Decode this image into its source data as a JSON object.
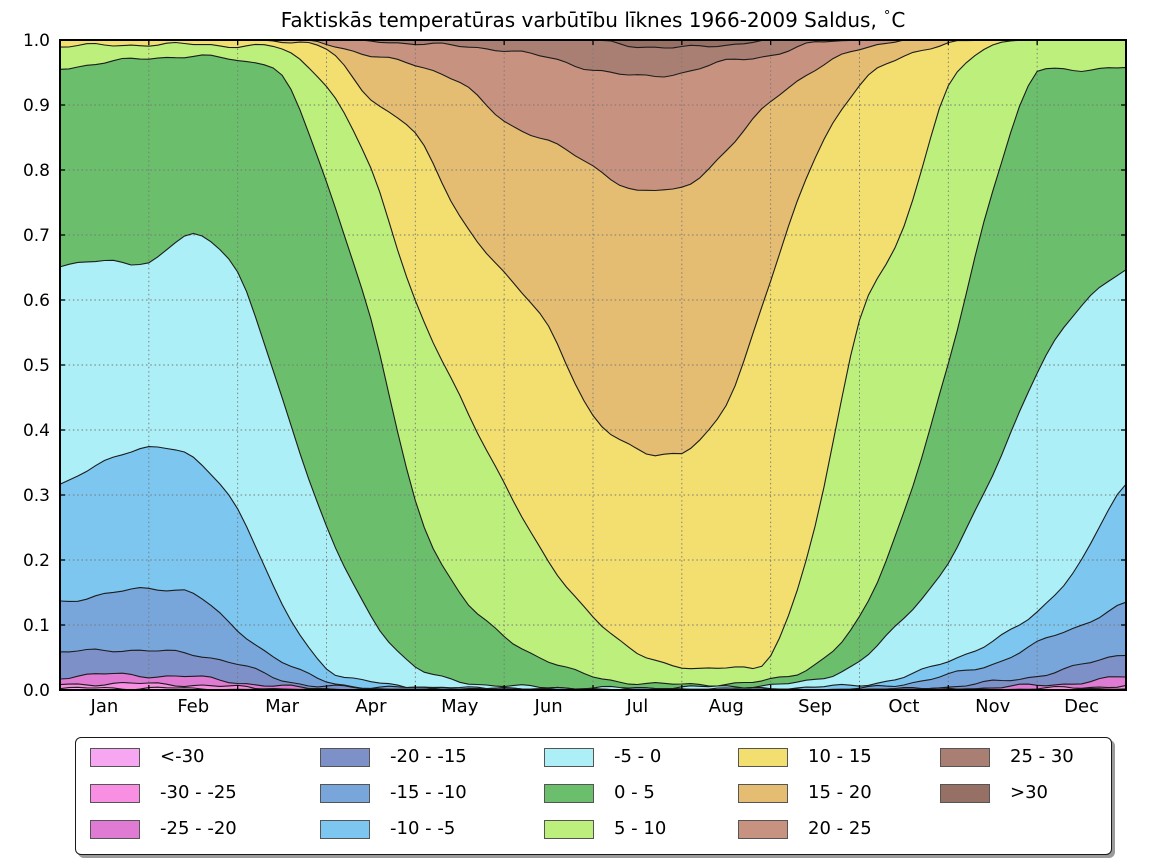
{
  "title": {
    "text": "Faktiskās temperatūras varbūtību līknes 1966-2009 Saldus,",
    "degree": "°",
    "unit": "C"
  },
  "chart_data": {
    "type": "area",
    "stacking": "cumulative-probability",
    "title": "Faktiskās temperatūras varbūtību līknes 1966-2009 Saldus, °C",
    "xlabel": "",
    "ylabel": "",
    "ylim": [
      0,
      1
    ],
    "grid": true,
    "legend_position": "bottom",
    "x_unit": "month-of-year",
    "x_knots_months": [
      0,
      0.5,
      1,
      1.5,
      2,
      2.5,
      3,
      3.5,
      4,
      4.5,
      5,
      5.5,
      6,
      6.5,
      7,
      7.5,
      8,
      8.5,
      9,
      9.5,
      10,
      10.5,
      11,
      11.5,
      12
    ],
    "x_tick_labels": [
      "Jan",
      "Feb",
      "Mar",
      "Apr",
      "May",
      "Jun",
      "Jul",
      "Aug",
      "Sep",
      "Oct",
      "Nov",
      "Dec"
    ],
    "y_tick_labels": [
      "0.0",
      "0.1",
      "0.2",
      "0.3",
      "0.4",
      "0.5",
      "0.6",
      "0.7",
      "0.8",
      "0.9",
      "1.0"
    ],
    "bands": [
      {
        "id": "lt-neg30",
        "label": "<-30",
        "color": "#F7A6F2",
        "cum_upper": [
          0.002,
          0.003,
          0.003,
          0.002,
          0.001,
          0.001,
          0,
          0,
          0,
          0,
          0,
          0,
          0,
          0,
          0,
          0,
          0,
          0,
          0,
          0,
          0,
          0,
          0.001,
          0.001,
          0.002
        ]
      },
      {
        "id": "neg30-neg25",
        "label": "-30 - -25",
        "color": "#F98FE2",
        "cum_upper": [
          0.008,
          0.01,
          0.009,
          0.008,
          0.004,
          0.002,
          0.001,
          0,
          0,
          0,
          0,
          0,
          0,
          0,
          0,
          0,
          0,
          0,
          0,
          0,
          0.001,
          0.001,
          0.002,
          0.004,
          0.007
        ]
      },
      {
        "id": "neg25-neg20",
        "label": "-25 - -20",
        "color": "#DF7BD2",
        "cum_upper": [
          0.02,
          0.024,
          0.022,
          0.02,
          0.012,
          0.005,
          0.002,
          0.001,
          0.001,
          0,
          0,
          0,
          0,
          0,
          0,
          0,
          0,
          0,
          0,
          0.001,
          0.002,
          0.004,
          0.007,
          0.012,
          0.02
        ]
      },
      {
        "id": "neg20-neg15",
        "label": "-20 - -15",
        "color": "#7E90C8",
        "cum_upper": [
          0.057,
          0.062,
          0.06,
          0.055,
          0.04,
          0.015,
          0.006,
          0.002,
          0.001,
          0.001,
          0.001,
          0.001,
          0,
          0,
          0,
          0,
          0,
          0,
          0.001,
          0.002,
          0.005,
          0.012,
          0.022,
          0.038,
          0.056
        ]
      },
      {
        "id": "neg15-neg10",
        "label": "-15 - -10",
        "color": "#78A6DB",
        "cum_upper": [
          0.135,
          0.148,
          0.155,
          0.15,
          0.09,
          0.045,
          0.012,
          0.005,
          0.003,
          0.002,
          0.002,
          0.001,
          0.001,
          0.001,
          0.001,
          0.001,
          0.001,
          0.001,
          0.002,
          0.01,
          0.023,
          0.04,
          0.072,
          0.1,
          0.133
        ]
      },
      {
        "id": "neg10-neg5",
        "label": "-10 - -5",
        "color": "#7CC6F0",
        "cum_upper": [
          0.318,
          0.35,
          0.375,
          0.355,
          0.28,
          0.13,
          0.035,
          0.012,
          0.005,
          0.003,
          0.002,
          0.002,
          0.002,
          0.002,
          0.002,
          0.002,
          0.003,
          0.004,
          0.008,
          0.02,
          0.045,
          0.075,
          0.12,
          0.2,
          0.315
        ]
      },
      {
        "id": "neg5-0",
        "label": "-5 - 0",
        "color": "#ACEFF7",
        "cum_upper": [
          0.65,
          0.663,
          0.655,
          0.703,
          0.64,
          0.45,
          0.25,
          0.115,
          0.035,
          0.014,
          0.006,
          0.004,
          0.003,
          0.003,
          0.004,
          0.005,
          0.008,
          0.015,
          0.045,
          0.11,
          0.197,
          0.33,
          0.49,
          0.59,
          0.648
        ]
      },
      {
        "id": "0-5",
        "label": "0 - 5",
        "color": "#6BBE6B",
        "cum_upper": [
          0.957,
          0.965,
          0.972,
          0.975,
          0.968,
          0.945,
          0.78,
          0.57,
          0.29,
          0.15,
          0.082,
          0.045,
          0.02,
          0.011,
          0.008,
          0.01,
          0.015,
          0.04,
          0.11,
          0.275,
          0.5,
          0.77,
          0.951,
          0.955,
          0.957
        ]
      },
      {
        "id": "5-10",
        "label": "5 - 10",
        "color": "#BDEF7D",
        "cum_upper": [
          0.99,
          0.992,
          0.993,
          0.993,
          0.991,
          0.985,
          0.93,
          0.8,
          0.6,
          0.45,
          0.32,
          0.195,
          0.115,
          0.055,
          0.037,
          0.033,
          0.055,
          0.25,
          0.57,
          0.71,
          0.93,
          0.99,
          1,
          1,
          1
        ]
      },
      {
        "id": "10-15",
        "label": "10 - 15",
        "color": "#F2DF6F",
        "cum_upper": [
          1,
          1,
          1,
          1,
          1,
          0.998,
          0.985,
          0.91,
          0.855,
          0.73,
          0.64,
          0.56,
          0.42,
          0.372,
          0.363,
          0.44,
          0.63,
          0.82,
          0.93,
          0.975,
          0.995,
          1,
          1,
          1,
          1
        ]
      },
      {
        "id": "15-20",
        "label": "15 - 20",
        "color": "#E4BD73",
        "cum_upper": [
          1,
          1,
          1,
          1,
          1,
          1,
          0.995,
          0.975,
          0.962,
          0.935,
          0.875,
          0.845,
          0.805,
          0.768,
          0.772,
          0.83,
          0.905,
          0.955,
          0.985,
          1,
          1,
          1,
          1,
          1,
          1
        ]
      },
      {
        "id": "20-25",
        "label": "20 - 25",
        "color": "#C79280",
        "cum_upper": [
          1,
          1,
          1,
          1,
          1,
          1,
          1,
          0.998,
          0.995,
          0.99,
          0.985,
          0.972,
          0.955,
          0.944,
          0.95,
          0.967,
          0.977,
          0.995,
          1,
          1,
          1,
          1,
          1,
          1,
          1
        ]
      },
      {
        "id": "25-30",
        "label": "25 - 30",
        "color": "#AA7F73",
        "cum_upper": [
          1,
          1,
          1,
          1,
          1,
          1,
          1,
          1,
          1,
          1,
          1,
          1,
          0.999,
          0.991,
          0.988,
          0.993,
          1,
          1,
          1,
          1,
          1,
          1,
          1,
          1,
          1
        ]
      },
      {
        "id": "gt-30",
        "label": ">30",
        "color": "#967065",
        "cum_upper": [
          1,
          1,
          1,
          1,
          1,
          1,
          1,
          1,
          1,
          1,
          1,
          1,
          1,
          1,
          1,
          1,
          1,
          1,
          1,
          1,
          1,
          1,
          1,
          1,
          1
        ]
      }
    ]
  },
  "legend": {
    "rows": 3,
    "columns": 5,
    "order": "column-major"
  }
}
